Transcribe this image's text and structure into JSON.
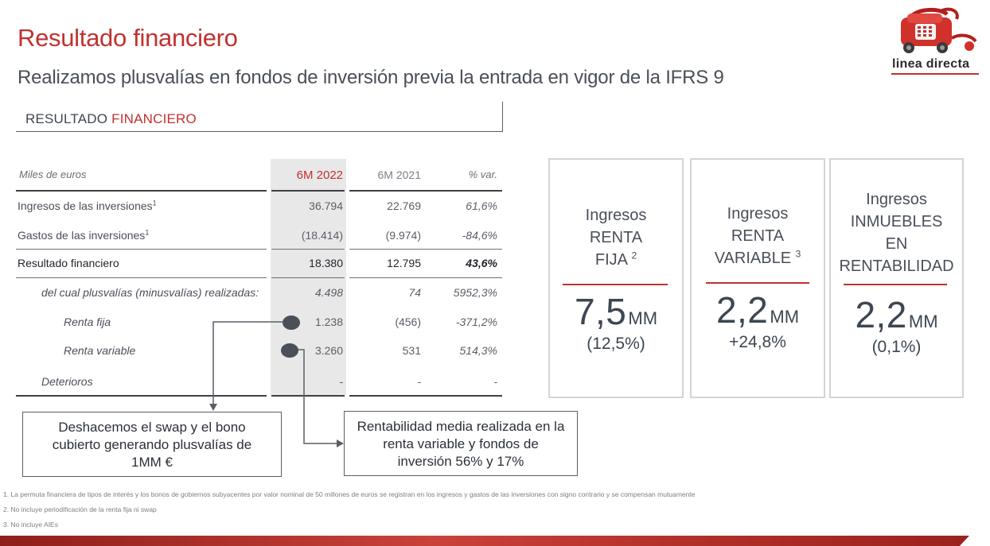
{
  "header": {
    "title": "Resultado financiero",
    "subtitle": "Realizamos plusvalías en fondos de inversión previa la entrada en vigor de la IFRS 9"
  },
  "logo": {
    "text": "linea directa",
    "icon": "red-telephone-on-wheels-icon"
  },
  "section": {
    "label_plain": "RESULTADO ",
    "label_accent": "FINANCIERO"
  },
  "table": {
    "header": {
      "label": "Miles de euros",
      "col1": "6M 2022",
      "col2": "6M 2021",
      "col3": "% var."
    },
    "rows": [
      {
        "label": "Ingresos de las inversiones",
        "note": "1",
        "col1": "36.794",
        "col2": "22.769",
        "col3": "61,6%"
      },
      {
        "label": "Gastos de las inversiones",
        "note": "1",
        "col1": "(18.414)",
        "col2": "(9.974)",
        "col3": "-84,6%"
      },
      {
        "label": "Resultado financiero",
        "col1": "18.380",
        "col2": "12.795",
        "col3": "43,6%"
      },
      {
        "label": "del cual plusvalías (minusvalías) realizadas:",
        "col1": "4.498",
        "col2": "74",
        "col3": "5952,3%"
      },
      {
        "label": "Renta fija",
        "col1": "1.238",
        "col2": "(456)",
        "col3": "-371,2%"
      },
      {
        "label": "Renta variable",
        "col1": "3.260",
        "col2": "531",
        "col3": "514,3%"
      },
      {
        "label": "Deterioros",
        "col1": "-",
        "col2": "-",
        "col3": "-"
      }
    ]
  },
  "callouts": {
    "left": "Deshacemos el swap y el bono cubierto generando plusvalías de 1MM €",
    "right": "Rentabilidad media realizada en la renta variable y fondos de inversión 56% y 17%"
  },
  "cards": [
    {
      "lines": [
        "Ingresos",
        "RENTA",
        "FIJA"
      ],
      "note": "2",
      "value": "7,5",
      "unit": "MM",
      "sub": "(12,5%)"
    },
    {
      "lines": [
        "Ingresos",
        "RENTA",
        "VARIABLE"
      ],
      "note": "3",
      "value": "2,2",
      "unit": "MM",
      "sub": "+24,8%"
    },
    {
      "lines": [
        "Ingresos",
        "INMUEBLES",
        "EN",
        "RENTABILIDAD"
      ],
      "note": "",
      "value": "2,2",
      "unit": "MM",
      "sub": "(0,1%)"
    }
  ],
  "footnotes": [
    "1. La permuta financiera de tipos de interés y los bonos de gobiernos subyacentes por valor nominal de 50 millones de euros se registran en los ingresos y gastos de las inversiones con signo contrario y se compensan mutuamente",
    "2. No incluye periodificación de la renta fija ni swap",
    "3. No incluye AIEs"
  ],
  "colors": {
    "accent": "#c0322f",
    "text": "#3d4652",
    "card_border": "#d4d4d6"
  }
}
